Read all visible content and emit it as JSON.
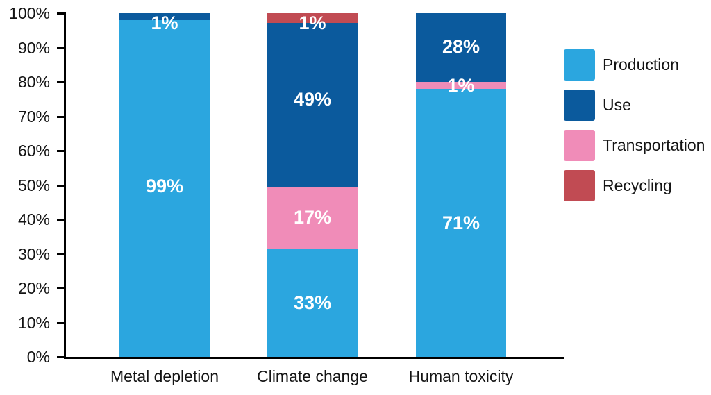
{
  "chart_data": {
    "type": "bar",
    "stacked": true,
    "title": "",
    "xlabel": "",
    "ylabel": "",
    "unit": "%",
    "ylim": [
      0,
      100
    ],
    "grid": false,
    "legend_position": "right",
    "categories": [
      "Metal depletion",
      "Climate change",
      "Human toxicity"
    ],
    "series": [
      {
        "name": "Production",
        "color": "#2BA6DF",
        "values": [
          99,
          33,
          71
        ]
      },
      {
        "name": "Use",
        "color": "#0B5A9D",
        "values": [
          1,
          49,
          28
        ]
      },
      {
        "name": "Transportation",
        "color": "#F08CB8",
        "values": [
          0,
          17,
          1
        ]
      },
      {
        "name": "Recycling",
        "color": "#C14B53",
        "values": [
          0,
          1,
          0
        ]
      }
    ],
    "y_ticks": [
      "0%",
      "10%",
      "20%",
      "30%",
      "40%",
      "50%",
      "60%",
      "70%",
      "80%",
      "90%",
      "100%"
    ],
    "bars": [
      {
        "category": "Metal depletion",
        "segments": [
          {
            "series": "Production",
            "value": 99,
            "label": "99%",
            "drawn_pct": 97.9,
            "label_dy": -4
          },
          {
            "series": "Use",
            "value": 1,
            "label": "1%",
            "drawn_pct": 2.1,
            "label_dy": 9
          }
        ]
      },
      {
        "category": "Climate change",
        "segments": [
          {
            "series": "Production",
            "value": 33,
            "label": "33%",
            "drawn_pct": 31.6,
            "label_dy": 0
          },
          {
            "series": "Transportation",
            "value": 17,
            "label": "17%",
            "drawn_pct": 18.0,
            "label_dy": 0
          },
          {
            "series": "Use",
            "value": 49,
            "label": "49%",
            "drawn_pct": 47.5,
            "label_dy": -8
          },
          {
            "series": "Recycling",
            "value": 1,
            "label": "1%",
            "drawn_pct": 2.9,
            "label_dy": 7
          }
        ]
      },
      {
        "category": "Human toxicity",
        "segments": [
          {
            "series": "Production",
            "value": 71,
            "label": "71%",
            "drawn_pct": 78.0,
            "label_dy": 0
          },
          {
            "series": "Transportation",
            "value": 1,
            "label": "1%",
            "drawn_pct": 2.0,
            "label_dy": 0
          },
          {
            "series": "Use",
            "value": 28,
            "label": "28%",
            "drawn_pct": 20.0,
            "label_dy": -2
          }
        ]
      }
    ],
    "legend": [
      "Production",
      "Use",
      "Transportation",
      "Recycling"
    ]
  },
  "colors": {
    "production": "#2BA6DF",
    "use": "#0B5A9D",
    "transportation": "#F08CB8",
    "recycling": "#C14B53",
    "axis": "#000000",
    "text": "#141414",
    "bar_label": "#ffffff",
    "background": "#ffffff"
  }
}
